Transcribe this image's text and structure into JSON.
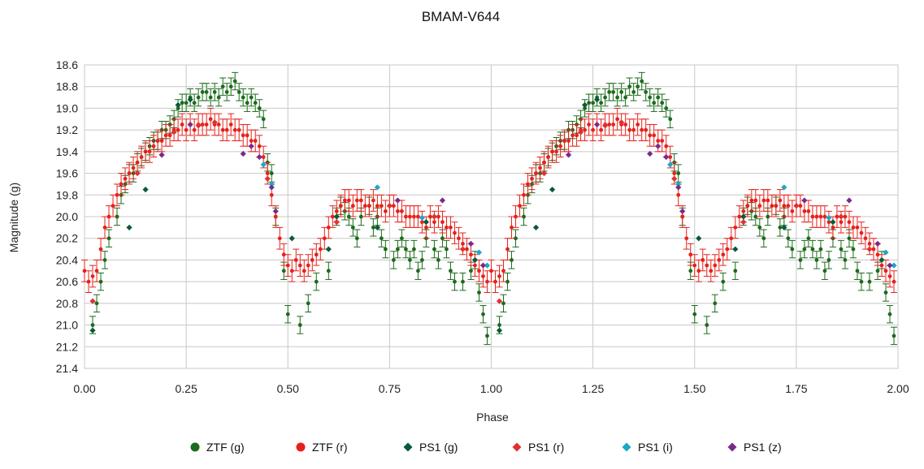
{
  "chart_data": {
    "type": "scatter",
    "title": "BMAM-V644",
    "xlabel": "Phase",
    "ylabel": "Magnitude (g)",
    "xlim": [
      0.0,
      2.0
    ],
    "ylim": [
      18.6,
      21.4
    ],
    "y_inverted": true,
    "grid": true,
    "legend_position": "bottom",
    "x_ticks": [
      "0.00",
      "0.25",
      "0.50",
      "0.75",
      "1.00",
      "1.25",
      "1.50",
      "1.75",
      "2.00"
    ],
    "y_ticks": [
      "18.6",
      "18.8",
      "19.0",
      "19.2",
      "19.4",
      "19.6",
      "19.8",
      "20.0",
      "20.2",
      "20.4",
      "20.6",
      "20.8",
      "21.0",
      "21.2",
      "21.4"
    ],
    "series": [
      {
        "name": "ZTF (g)",
        "marker": "circle",
        "color": "#1b6b1b",
        "error_bars": true,
        "x": [
          0.02,
          0.03,
          0.04,
          0.05,
          0.06,
          0.08,
          0.09,
          0.1,
          0.11,
          0.12,
          0.13,
          0.14,
          0.15,
          0.16,
          0.17,
          0.18,
          0.19,
          0.2,
          0.21,
          0.22,
          0.23,
          0.24,
          0.25,
          0.26,
          0.27,
          0.28,
          0.29,
          0.3,
          0.31,
          0.32,
          0.33,
          0.34,
          0.35,
          0.36,
          0.37,
          0.38,
          0.39,
          0.4,
          0.41,
          0.42,
          0.43,
          0.44,
          0.45,
          0.46,
          0.47,
          0.49,
          0.5,
          0.53,
          0.55,
          0.57,
          0.6,
          0.62,
          0.63,
          0.64,
          0.65,
          0.66,
          0.67,
          0.68,
          0.7,
          0.71,
          0.72,
          0.73,
          0.74,
          0.76,
          0.77,
          0.78,
          0.79,
          0.8,
          0.81,
          0.82,
          0.83,
          0.84,
          0.86,
          0.87,
          0.88,
          0.89,
          0.9,
          0.91,
          0.93,
          0.95,
          0.96,
          0.97,
          0.98,
          0.99
        ],
        "y": [
          21.0,
          20.8,
          20.6,
          20.4,
          20.2,
          20.0,
          19.8,
          19.7,
          19.6,
          19.6,
          19.5,
          19.45,
          19.4,
          19.35,
          19.3,
          19.3,
          19.2,
          19.2,
          19.15,
          19.1,
          19.0,
          18.95,
          18.95,
          18.9,
          18.95,
          18.9,
          18.85,
          18.85,
          18.9,
          18.85,
          18.9,
          18.8,
          18.85,
          18.8,
          18.75,
          18.85,
          18.9,
          18.95,
          18.9,
          18.95,
          19.0,
          19.1,
          19.5,
          19.6,
          20.0,
          20.5,
          20.9,
          21.0,
          20.8,
          20.6,
          20.5,
          20.0,
          19.9,
          19.95,
          20.0,
          20.1,
          20.2,
          20.0,
          19.9,
          20.1,
          20.0,
          20.2,
          20.3,
          20.4,
          20.3,
          20.2,
          20.3,
          20.4,
          20.3,
          20.5,
          20.4,
          20.2,
          20.3,
          20.4,
          20.2,
          20.3,
          20.5,
          20.6,
          20.6,
          20.5,
          20.4,
          20.7,
          20.9,
          21.1
        ],
        "err": 0.08
      },
      {
        "name": "ZTF (r)",
        "marker": "circle",
        "color": "#e8201a",
        "error_bars": true,
        "x": [
          0.0,
          0.01,
          0.02,
          0.03,
          0.04,
          0.05,
          0.06,
          0.07,
          0.08,
          0.09,
          0.1,
          0.11,
          0.12,
          0.13,
          0.14,
          0.15,
          0.16,
          0.17,
          0.18,
          0.19,
          0.2,
          0.21,
          0.22,
          0.23,
          0.24,
          0.25,
          0.26,
          0.27,
          0.28,
          0.29,
          0.3,
          0.31,
          0.32,
          0.33,
          0.34,
          0.35,
          0.36,
          0.37,
          0.38,
          0.39,
          0.4,
          0.41,
          0.42,
          0.43,
          0.44,
          0.45,
          0.46,
          0.47,
          0.48,
          0.49,
          0.5,
          0.51,
          0.52,
          0.53,
          0.54,
          0.55,
          0.56,
          0.57,
          0.58,
          0.59,
          0.6,
          0.61,
          0.62,
          0.63,
          0.64,
          0.65,
          0.66,
          0.67,
          0.68,
          0.69,
          0.7,
          0.71,
          0.72,
          0.73,
          0.74,
          0.75,
          0.76,
          0.77,
          0.78,
          0.79,
          0.8,
          0.81,
          0.82,
          0.83,
          0.84,
          0.85,
          0.86,
          0.87,
          0.88,
          0.89,
          0.9,
          0.91,
          0.92,
          0.93,
          0.94,
          0.95,
          0.96,
          0.97,
          0.98,
          0.99
        ],
        "y": [
          20.5,
          20.6,
          20.55,
          20.5,
          20.3,
          20.1,
          20.0,
          19.9,
          19.8,
          19.7,
          19.65,
          19.6,
          19.55,
          19.5,
          19.45,
          19.4,
          19.4,
          19.35,
          19.3,
          19.3,
          19.25,
          19.25,
          19.2,
          19.2,
          19.15,
          19.2,
          19.15,
          19.2,
          19.15,
          19.15,
          19.15,
          19.1,
          19.15,
          19.15,
          19.2,
          19.2,
          19.15,
          19.2,
          19.2,
          19.25,
          19.25,
          19.3,
          19.3,
          19.35,
          19.45,
          19.6,
          19.8,
          20.0,
          20.2,
          20.35,
          20.45,
          20.5,
          20.4,
          20.45,
          20.5,
          20.45,
          20.4,
          20.35,
          20.3,
          20.2,
          20.1,
          20.0,
          19.95,
          19.9,
          19.85,
          19.85,
          19.9,
          19.85,
          19.85,
          19.9,
          19.9,
          19.85,
          19.9,
          19.9,
          19.95,
          19.9,
          19.9,
          19.95,
          19.95,
          20.0,
          20.0,
          20.0,
          20.0,
          20.05,
          20.1,
          20.0,
          20.05,
          20.0,
          20.05,
          20.1,
          20.1,
          20.15,
          20.2,
          20.25,
          20.3,
          20.35,
          20.45,
          20.5,
          20.55,
          20.6
        ],
        "err": 0.1
      },
      {
        "name": "PS1 (g)",
        "marker": "diamond",
        "color": "#0a5a3a",
        "error_bars": false,
        "x": [
          0.02,
          0.11,
          0.15,
          0.23,
          0.26,
          0.51,
          0.6,
          0.62,
          0.72,
          0.84,
          0.96
        ],
        "y": [
          21.05,
          20.1,
          19.75,
          18.97,
          18.92,
          20.2,
          20.3,
          20.0,
          20.1,
          20.05,
          20.4
        ],
        "err": 0.0
      },
      {
        "name": "PS1 (r)",
        "marker": "diamond",
        "color": "#e03030",
        "error_bars": false,
        "x": [
          0.02,
          0.13,
          0.22,
          0.28,
          0.32,
          0.45,
          0.62,
          0.75,
          0.86,
          0.93
        ],
        "y": [
          20.78,
          19.6,
          19.22,
          19.16,
          19.13,
          19.65,
          20.05,
          19.9,
          20.0,
          20.3
        ],
        "err": 0.0
      },
      {
        "name": "PS1 (i)",
        "marker": "diamond",
        "color": "#1aa8c8",
        "error_bars": false,
        "x": [
          0.44,
          0.46,
          0.72,
          0.83,
          0.97,
          0.99
        ],
        "y": [
          19.52,
          19.7,
          19.73,
          20.01,
          20.33,
          20.45
        ],
        "err": 0.0
      },
      {
        "name": "PS1 (z)",
        "marker": "diamond",
        "color": "#7a2a8a",
        "error_bars": false,
        "x": [
          0.19,
          0.26,
          0.39,
          0.41,
          0.43,
          0.46,
          0.47,
          0.77,
          0.88,
          0.95,
          0.98
        ],
        "y": [
          19.43,
          19.15,
          19.42,
          19.35,
          19.45,
          19.73,
          19.95,
          19.85,
          19.85,
          20.25,
          20.45
        ],
        "err": 0.0
      }
    ]
  }
}
